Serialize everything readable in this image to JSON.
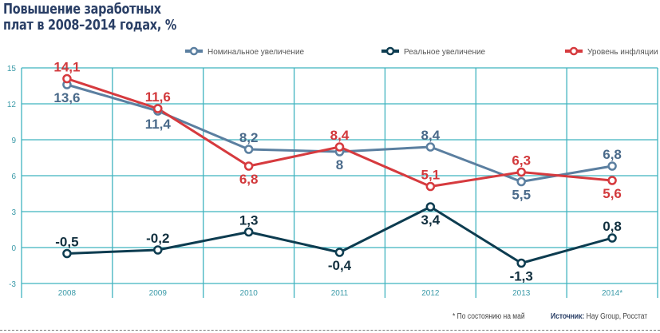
{
  "chart_data": {
    "type": "line",
    "title_lines": [
      "Повышение заработных",
      "плат в 2008–2014 годах, %"
    ],
    "categories": [
      "2008",
      "2009",
      "2010",
      "2011",
      "2012",
      "2013",
      "2014*"
    ],
    "ylim": [
      -3,
      15
    ],
    "yticks": [
      "-3",
      "0",
      "3",
      "6",
      "9",
      "12",
      "15"
    ],
    "grid": true,
    "legend_position": "top-right",
    "series": [
      {
        "name": "Номинальное увеличение",
        "color": "#5b7fa0",
        "label_color": "#4a6a8a",
        "values": [
          13.6,
          11.4,
          8.2,
          8,
          8.4,
          5.5,
          6.8
        ],
        "labels": [
          "13,6",
          "11,4",
          "8,2",
          "8",
          "8,4",
          "5,5",
          "6,8"
        ],
        "label_side": [
          "below",
          "below",
          "above",
          "below",
          "above",
          "below",
          "above"
        ]
      },
      {
        "name": "Реальное увеличение",
        "color": "#0d3c50",
        "label_color": "#12303f",
        "values": [
          -0.5,
          -0.2,
          1.3,
          -0.4,
          3.4,
          -1.3,
          0.8
        ],
        "labels": [
          "-0,5",
          "-0,2",
          "1,3",
          "-0,4",
          "3,4",
          "-1,3",
          "0,8"
        ],
        "label_side": [
          "above",
          "above",
          "above",
          "below",
          "below",
          "below",
          "above"
        ]
      },
      {
        "name": "Уровень инфляции",
        "color": "#d63a3e",
        "label_color": "#d2393c",
        "values": [
          14.1,
          11.6,
          6.8,
          8.4,
          5.1,
          6.3,
          5.6
        ],
        "labels": [
          "14,1",
          "11,6",
          "6,8",
          "8,4",
          "5,1",
          "6,3",
          "5,6"
        ],
        "label_side": [
          "above",
          "above",
          "below",
          "above",
          "above",
          "above",
          "below"
        ]
      }
    ],
    "grid_color": "#3fb3bf"
  },
  "footnote": "* По состоянию на май",
  "source_label": "Источник:",
  "source_text": " Hay Group, Росстат"
}
